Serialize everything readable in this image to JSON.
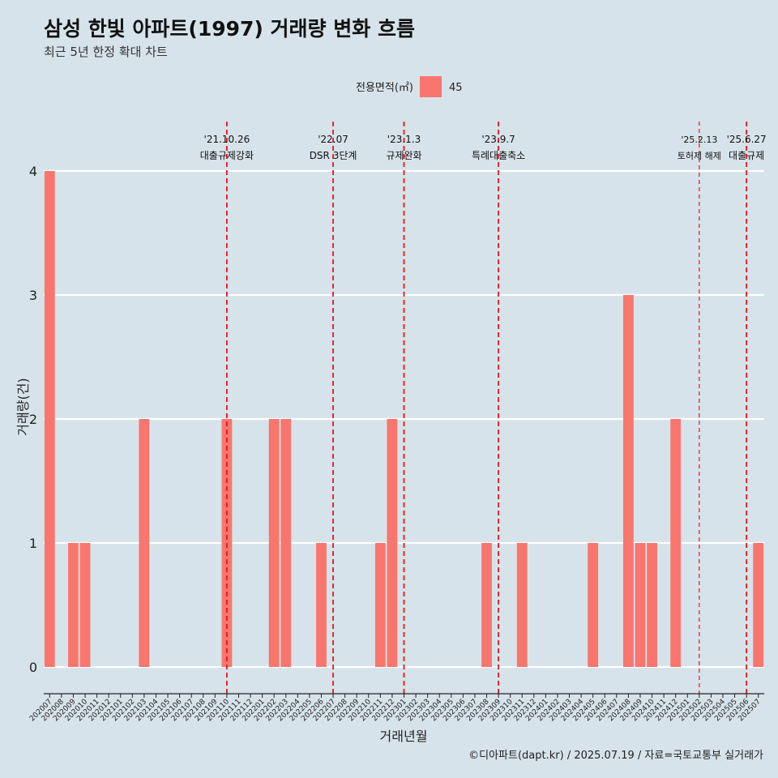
{
  "header": {
    "title": "삼성 한빛 아파트(1997) 거래량 변화 흐름",
    "subtitle": "최근 5년 한정 확대 차트"
  },
  "legend": {
    "title": "전용면적(㎡)",
    "items": [
      {
        "label": "45",
        "color": "#f8766d"
      }
    ]
  },
  "caption": "©디아파트(dapt.kr) / 2025.07.19 / 자료=국토교통부 실거래가",
  "chart_data": {
    "type": "bar",
    "xlabel": "거래년월",
    "ylabel": "거래량(건)",
    "ylim": [
      0,
      4
    ],
    "yticks": [
      0,
      1,
      2,
      3,
      4
    ],
    "grid": true,
    "legend_position": "top",
    "categories": [
      "202007",
      "202008",
      "202009",
      "202010",
      "202011",
      "202012",
      "202101",
      "202102",
      "202103",
      "202104",
      "202105",
      "202106",
      "202107",
      "202108",
      "202109",
      "202110",
      "202111",
      "202112",
      "202201",
      "202202",
      "202203",
      "202204",
      "202205",
      "202206",
      "202207",
      "202208",
      "202209",
      "202210",
      "202211",
      "202212",
      "202301",
      "202302",
      "202303",
      "202304",
      "202305",
      "202306",
      "202307",
      "202308",
      "202309",
      "202310",
      "202311",
      "202312",
      "202401",
      "202402",
      "202403",
      "202404",
      "202405",
      "202406",
      "202407",
      "202408",
      "202409",
      "202410",
      "202411",
      "202412",
      "202501",
      "202502",
      "202503",
      "202504",
      "202505",
      "202506",
      "202507"
    ],
    "series": [
      {
        "name": "45",
        "color": "#f8766d",
        "values": [
          4,
          0,
          1,
          1,
          0,
          0,
          0,
          0,
          2,
          0,
          0,
          0,
          0,
          0,
          0,
          2,
          0,
          0,
          0,
          2,
          2,
          0,
          0,
          1,
          0,
          0,
          0,
          0,
          1,
          2,
          0,
          0,
          0,
          0,
          0,
          0,
          0,
          1,
          0,
          0,
          1,
          0,
          0,
          0,
          0,
          0,
          1,
          0,
          0,
          3,
          1,
          1,
          0,
          2,
          0,
          0,
          0,
          0,
          0,
          0,
          1
        ]
      }
    ],
    "annotations": [
      {
        "date": "'21.10.26",
        "label": "대출규제강화",
        "month": "202110",
        "style": "bold"
      },
      {
        "date": "'22.07",
        "label": "DSR 3단계",
        "month": "202207",
        "style": "bold"
      },
      {
        "date": "'23.1.3",
        "label": "규제완화",
        "month": "202301",
        "style": "bold"
      },
      {
        "date": "'23.9.7",
        "label": "특례대출축소",
        "month": "202309",
        "style": "bold"
      },
      {
        "date": "'25.2.13",
        "label": "토허제 해제",
        "month": "202502",
        "style": "thin"
      },
      {
        "date": "'25.6.27",
        "label": "대출규제",
        "month": "202506",
        "style": "bold"
      }
    ]
  }
}
